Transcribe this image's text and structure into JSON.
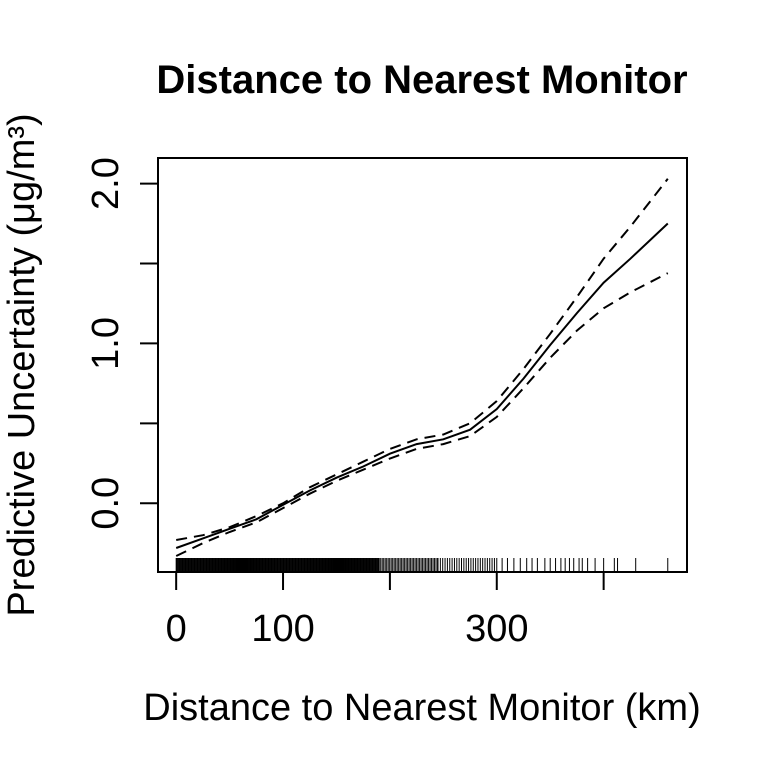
{
  "chart_data": {
    "type": "line",
    "title": "Distance to Nearest Monitor",
    "xlabel": "Distance to Nearest Monitor (km)",
    "ylabel": "Predictive Uncertainty (μg/m³)",
    "xlim": [
      -17,
      478
    ],
    "ylim": [
      -0.43,
      2.16
    ],
    "x_ticks": [
      0,
      100,
      200,
      300,
      400
    ],
    "x_tick_labels": [
      "0",
      "100",
      "",
      "300",
      ""
    ],
    "y_ticks": [
      0.0,
      0.5,
      1.0,
      1.5,
      2.0
    ],
    "y_tick_labels": [
      "0.0",
      "",
      "1.0",
      "",
      "2.0"
    ],
    "grid": false,
    "series": [
      {
        "style": "solid",
        "x": [
          0,
          25,
          50,
          75,
          100,
          125,
          150,
          175,
          200,
          225,
          250,
          275,
          300,
          325,
          350,
          375,
          400,
          425,
          460
        ],
        "y": [
          -0.28,
          -0.22,
          -0.16,
          -0.1,
          -0.01,
          0.08,
          0.16,
          0.23,
          0.31,
          0.37,
          0.4,
          0.46,
          0.59,
          0.78,
          0.99,
          1.19,
          1.38,
          1.53,
          1.75
        ]
      },
      {
        "style": "dashed",
        "x": [
          0,
          25,
          50,
          75,
          100,
          125,
          150,
          175,
          200,
          225,
          250,
          275,
          300,
          325,
          350,
          375,
          400,
          425,
          460
        ],
        "y": [
          -0.23,
          -0.2,
          -0.15,
          -0.08,
          0.0,
          0.1,
          0.18,
          0.26,
          0.34,
          0.4,
          0.43,
          0.5,
          0.64,
          0.84,
          1.06,
          1.29,
          1.53,
          1.73,
          2.03
        ]
      },
      {
        "style": "dashed",
        "x": [
          0,
          25,
          50,
          75,
          100,
          125,
          150,
          175,
          200,
          225,
          250,
          275,
          300,
          325,
          350,
          375,
          400,
          425,
          460
        ],
        "y": [
          -0.33,
          -0.25,
          -0.18,
          -0.12,
          -0.03,
          0.06,
          0.14,
          0.21,
          0.28,
          0.34,
          0.37,
          0.42,
          0.54,
          0.72,
          0.91,
          1.08,
          1.22,
          1.32,
          1.44
        ]
      }
    ],
    "rug": {
      "dense_ranges": [
        [
          0,
          190
        ],
        [
          190,
          245
        ],
        [
          245,
          300
        ]
      ],
      "sparse_x": [
        305,
        310,
        316,
        322,
        328,
        333,
        338,
        345,
        350,
        355,
        360,
        364,
        368,
        372,
        377,
        380,
        385,
        392,
        400,
        410,
        413,
        430,
        460
      ]
    }
  }
}
